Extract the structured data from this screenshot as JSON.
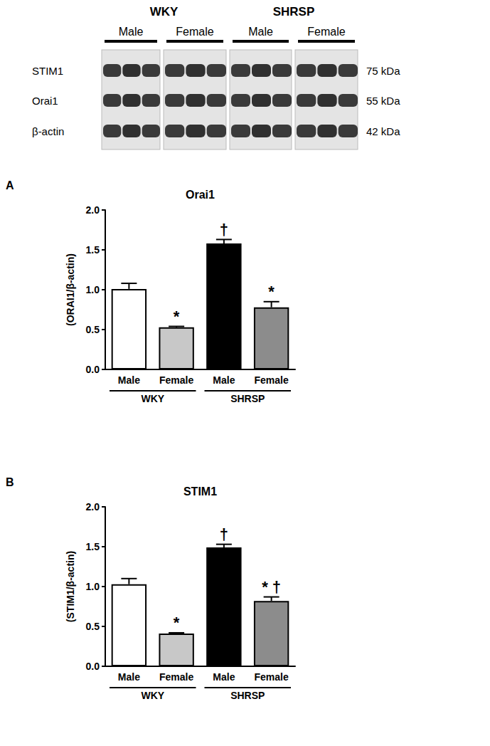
{
  "blot": {
    "groups": [
      {
        "label": "WKY",
        "subgroups": [
          "Male",
          "Female"
        ]
      },
      {
        "label": "SHRSP",
        "subgroups": [
          "Male",
          "Female"
        ]
      }
    ],
    "rows": [
      {
        "label": "STIM1",
        "size": "75 kDa"
      },
      {
        "label": "Orai1",
        "size": "55 kDa"
      },
      {
        "label": "β-actin",
        "size": "42 kDa"
      }
    ]
  },
  "chart_data": [
    {
      "type": "bar",
      "panel": "A",
      "title": "Orai1",
      "y_label": "(ORAI1/β-actin)",
      "categories": [
        "Male",
        "Female",
        "Male",
        "Female"
      ],
      "groups": [
        "WKY",
        "WKY",
        "SHRSP",
        "SHRSP"
      ],
      "values": [
        1.01,
        0.53,
        1.58,
        0.78
      ],
      "errors": [
        0.07,
        0.01,
        0.05,
        0.07
      ],
      "annotations": [
        null,
        "*",
        "†",
        "*"
      ],
      "colors": [
        "#ffffff",
        "#c8c8c8",
        "#000000",
        "#8c8c8c"
      ],
      "ylim": [
        0,
        2
      ],
      "yticks": [
        {
          "value": 0,
          "label": "0.0"
        },
        0.5,
        {
          "value": 1,
          "label": "1.0"
        },
        1.5,
        {
          "value": 2,
          "label": "2.0"
        }
      ],
      "grid": false
    },
    {
      "type": "bar",
      "panel": "B",
      "title": "STIM1",
      "y_label": "(STIM1/β-actin)",
      "categories": [
        "Male",
        "Female",
        "Male",
        "Female"
      ],
      "groups": [
        "WKY",
        "WKY",
        "SHRSP",
        "SHRSP"
      ],
      "values": [
        1.03,
        0.41,
        1.49,
        0.82
      ],
      "errors": [
        0.07,
        0.01,
        0.04,
        0.05
      ],
      "annotations": [
        null,
        "*",
        "†",
        "* †"
      ],
      "colors": [
        "#ffffff",
        "#c8c8c8",
        "#000000",
        "#8c8c8c"
      ],
      "ylim": [
        0,
        2
      ],
      "yticks": [
        {
          "value": 0,
          "label": "0.0"
        },
        0.5,
        {
          "value": 1,
          "label": "1.0"
        },
        1.5,
        {
          "value": 2,
          "label": "2.0"
        }
      ],
      "grid": false
    }
  ]
}
